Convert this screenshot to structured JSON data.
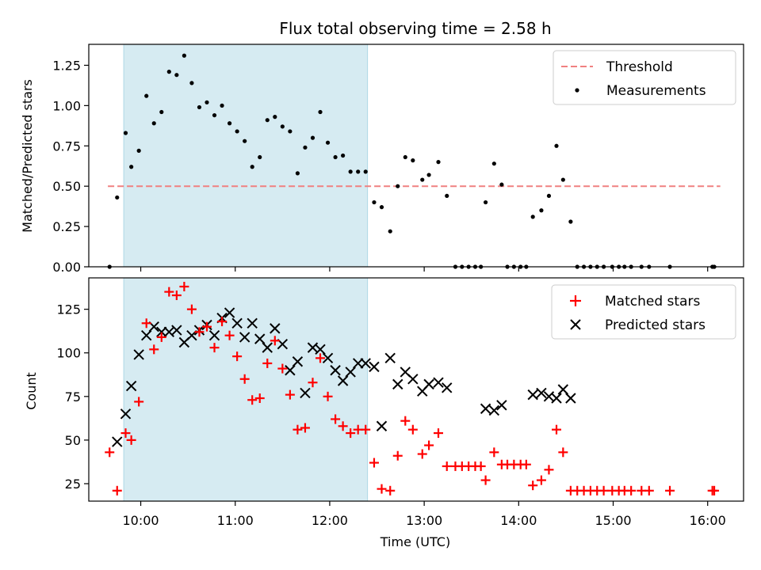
{
  "chart_data": [
    {
      "type": "scatter",
      "title": "Flux total observing time = 2.58 h",
      "ylabel": "Matched/Predicted stars",
      "xlabel": "",
      "xlim": [
        9.45,
        16.38
      ],
      "ylim": [
        0,
        1.38
      ],
      "y_ticks": [
        0.0,
        0.25,
        0.5,
        0.75,
        1.0,
        1.25
      ],
      "y_tick_labels": [
        "0.00",
        "0.25",
        "0.50",
        "0.75",
        "1.00",
        "1.25"
      ],
      "x_ticks": [
        10,
        11,
        12,
        13,
        14,
        15,
        16
      ],
      "shaded_interval": [
        9.82,
        12.4
      ],
      "threshold": {
        "name": "Threshold",
        "value": 0.5,
        "x": [
          9.82,
          16.05
        ],
        "color": "#f08080"
      },
      "legend_position": "top-right",
      "series": [
        {
          "name": "Measurements",
          "color": "#000000",
          "marker": "dot",
          "x": [
            9.67,
            9.75,
            9.84,
            9.9,
            9.98,
            10.06,
            10.14,
            10.22,
            10.3,
            10.38,
            10.46,
            10.54,
            10.62,
            10.7,
            10.78,
            10.86,
            10.94,
            11.02,
            11.1,
            11.18,
            11.26,
            11.34,
            11.42,
            11.5,
            11.58,
            11.66,
            11.74,
            11.82,
            11.9,
            11.98,
            12.06,
            12.14,
            12.22,
            12.3,
            12.38,
            12.47,
            12.55,
            12.64,
            12.72,
            12.8,
            12.88,
            12.98,
            13.05,
            13.15,
            13.24,
            13.33,
            13.4,
            13.47,
            13.54,
            13.6,
            13.65,
            13.74,
            13.82,
            13.88,
            13.95,
            14.02,
            14.08,
            14.15,
            14.24,
            14.32,
            14.4,
            14.47,
            14.55,
            14.62,
            14.69,
            14.76,
            14.83,
            14.9,
            14.99,
            15.06,
            15.12,
            15.19,
            15.3,
            15.38,
            15.6,
            16.05,
            16.07
          ],
          "y": [
            0.0,
            0.43,
            0.83,
            0.62,
            0.72,
            1.06,
            0.89,
            0.96,
            1.21,
            1.19,
            1.31,
            1.14,
            0.99,
            1.02,
            0.94,
            1.0,
            0.89,
            0.84,
            0.78,
            0.62,
            0.68,
            0.91,
            0.93,
            0.87,
            0.84,
            0.58,
            0.74,
            0.8,
            0.96,
            0.77,
            0.68,
            0.69,
            0.59,
            0.59,
            0.59,
            0.4,
            0.37,
            0.22,
            0.5,
            0.68,
            0.66,
            0.54,
            0.57,
            0.65,
            0.44,
            0.0,
            0.0,
            0.0,
            0.0,
            0.0,
            0.4,
            0.64,
            0.51,
            0.0,
            0.0,
            0.0,
            0.0,
            0.31,
            0.35,
            0.44,
            0.75,
            0.54,
            0.28,
            0.0,
            0.0,
            0.0,
            0.0,
            0.0,
            0.0,
            0.0,
            0.0,
            0.0,
            0.0,
            0.0,
            0.0,
            0.0,
            0.0
          ]
        }
      ]
    },
    {
      "type": "scatter",
      "title": "",
      "xlabel": "Time (UTC)",
      "ylabel": "Count",
      "xlim": [
        9.45,
        16.38
      ],
      "ylim": [
        15,
        143
      ],
      "y_ticks": [
        25,
        50,
        75,
        100,
        125
      ],
      "y_tick_labels": [
        "25",
        "50",
        "75",
        "100",
        "125"
      ],
      "x_ticks": [
        10,
        11,
        12,
        13,
        14,
        15,
        16
      ],
      "x_tick_labels": [
        "10:00",
        "11:00",
        "12:00",
        "13:00",
        "14:00",
        "15:00",
        "16:00"
      ],
      "shaded_interval": [
        9.82,
        12.4
      ],
      "legend_position": "top-right",
      "series": [
        {
          "name": "Matched stars",
          "color": "#ff0000",
          "marker": "plus",
          "x": [
            9.67,
            9.75,
            9.84,
            9.9,
            9.98,
            10.06,
            10.14,
            10.22,
            10.3,
            10.38,
            10.46,
            10.54,
            10.62,
            10.7,
            10.78,
            10.86,
            10.94,
            11.02,
            11.1,
            11.18,
            11.26,
            11.34,
            11.42,
            11.5,
            11.58,
            11.66,
            11.74,
            11.82,
            11.9,
            11.98,
            12.06,
            12.14,
            12.22,
            12.3,
            12.38,
            12.47,
            12.55,
            12.64,
            12.72,
            12.8,
            12.88,
            12.98,
            13.05,
            13.15,
            13.24,
            13.33,
            13.4,
            13.47,
            13.54,
            13.6,
            13.65,
            13.74,
            13.82,
            13.88,
            13.95,
            14.02,
            14.08,
            14.15,
            14.24,
            14.32,
            14.4,
            14.47,
            14.55,
            14.62,
            14.69,
            14.76,
            14.83,
            14.9,
            14.99,
            15.06,
            15.12,
            15.19,
            15.3,
            15.38,
            15.6,
            16.05,
            16.07
          ],
          "y": [
            43,
            21,
            54,
            50,
            72,
            117,
            102,
            109,
            135,
            133,
            138,
            125,
            112,
            115,
            103,
            118,
            110,
            98,
            85,
            73,
            74,
            94,
            107,
            91,
            76,
            56,
            57,
            83,
            97,
            75,
            62,
            58,
            54,
            56,
            56,
            37,
            22,
            21,
            41,
            61,
            56,
            42,
            47,
            54,
            35,
            35,
            35,
            35,
            35,
            35,
            27,
            43,
            36,
            36,
            36,
            36,
            36,
            24,
            27,
            33,
            56,
            43,
            21,
            21,
            21,
            21,
            21,
            21,
            21,
            21,
            21,
            21,
            21,
            21,
            21,
            21,
            21
          ]
        },
        {
          "name": "Predicted stars",
          "color": "#000000",
          "marker": "x",
          "x": [
            9.75,
            9.84,
            9.9,
            9.98,
            10.06,
            10.14,
            10.22,
            10.3,
            10.38,
            10.46,
            10.54,
            10.62,
            10.7,
            10.78,
            10.86,
            10.94,
            11.02,
            11.1,
            11.18,
            11.26,
            11.34,
            11.42,
            11.5,
            11.58,
            11.66,
            11.74,
            11.82,
            11.9,
            11.98,
            12.06,
            12.14,
            12.22,
            12.3,
            12.38,
            12.47,
            12.55,
            12.64,
            12.72,
            12.8,
            12.88,
            12.98,
            13.05,
            13.15,
            13.24,
            13.65,
            13.74,
            13.82,
            14.15,
            14.24,
            14.32,
            14.4,
            14.47,
            14.55
          ],
          "y": [
            49,
            65,
            81,
            99,
            110,
            115,
            112,
            112,
            113,
            106,
            110,
            113,
            116,
            110,
            120,
            123,
            117,
            109,
            117,
            108,
            103,
            114,
            105,
            90,
            95,
            77,
            103,
            102,
            97,
            90,
            84,
            89,
            94,
            94,
            92,
            58,
            97,
            82,
            89,
            85,
            78,
            82,
            83,
            80,
            68,
            67,
            70,
            76,
            77,
            75,
            74,
            79,
            74
          ]
        }
      ]
    }
  ]
}
